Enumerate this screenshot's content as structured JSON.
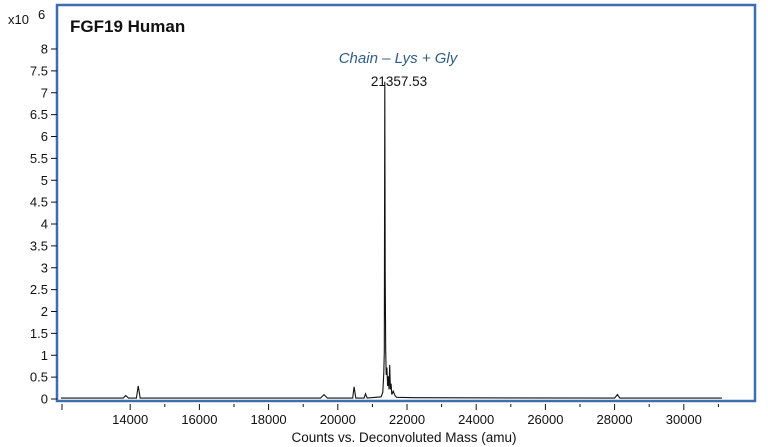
{
  "chart_data": {
    "type": "line",
    "title": "FGF19  Human",
    "xlabel": "Counts vs. Deconvoluted Mass (amu)",
    "ylabel": "",
    "y_multiplier": "x10",
    "y_exponent": "6",
    "xlim": [
      12000,
      31100
    ],
    "ylim": [
      0,
      8.4
    ],
    "x_ticks": [
      14000,
      16000,
      18000,
      20000,
      22000,
      24000,
      26000,
      28000,
      30000
    ],
    "y_ticks": [
      "0",
      "0.5",
      "1",
      "1.5",
      "2",
      "2.5",
      "3",
      "3.5",
      "4",
      "4.5",
      "5",
      "5.5",
      "6",
      "6.5",
      "7",
      "7.5",
      "8"
    ],
    "grid": false,
    "annotation": "Chain – Lys + Gly",
    "peak_label": "21357.53",
    "peak_x": 21357.53,
    "series": [
      {
        "x": [
          12000,
          13800,
          13870,
          13950,
          14180,
          14230,
          14290,
          16000,
          19500,
          19600,
          19700,
          20430,
          20470,
          20520,
          20760,
          20800,
          20850,
          21250,
          21300,
          21330,
          21345,
          21357.53,
          21370,
          21385,
          21400,
          21420,
          21440,
          21460,
          21480,
          21500,
          21520,
          21540,
          21560,
          21600,
          21650,
          21700,
          22200,
          28000,
          28080,
          28150,
          31100
        ],
        "y": [
          0.02,
          0.02,
          0.08,
          0.02,
          0.02,
          0.3,
          0.02,
          0.02,
          0.02,
          0.1,
          0.02,
          0.02,
          0.28,
          0.02,
          0.02,
          0.12,
          0.02,
          0.05,
          0.15,
          0.6,
          1.1,
          7.25,
          2.9,
          1.1,
          0.55,
          0.72,
          0.3,
          0.52,
          0.22,
          0.78,
          0.22,
          0.35,
          0.1,
          0.18,
          0.08,
          0.04,
          0.03,
          0.02,
          0.1,
          0.02,
          0.02
        ]
      }
    ]
  }
}
